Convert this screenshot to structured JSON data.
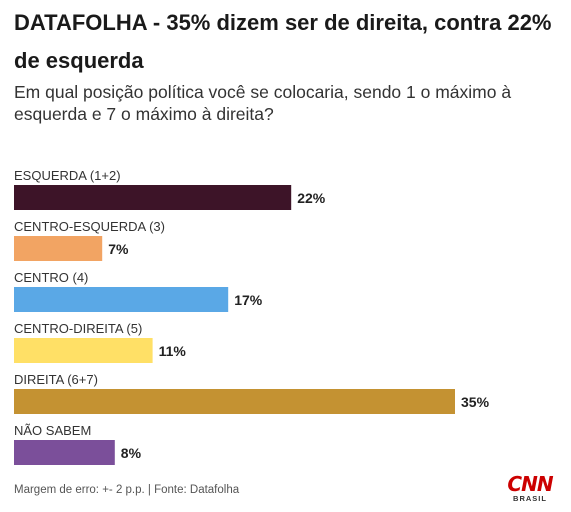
{
  "header": {
    "title": "DATAFOLHA - 35% dizem ser de direita, contra 22% de esquerda",
    "subtitle": "Em qual posição política você se colocaria, sendo 1 o máximo à esquerda e 7 o máximo à direita?"
  },
  "chart_data": {
    "type": "bar",
    "orientation": "horizontal",
    "categories": [
      "ESQUERDA (1+2)",
      "CENTRO-ESQUERDA (3)",
      "CENTRO (4)",
      "CENTRO-DIREITA (5)",
      "DIREITA (6+7)",
      "NÃO SABEM"
    ],
    "values": [
      22,
      7,
      17,
      11,
      35,
      8
    ],
    "data_labels": [
      "22%",
      "7%",
      "17%",
      "11%",
      "35%",
      "8%"
    ],
    "colors": [
      "#3d1428",
      "#f2a463",
      "#5aa8e6",
      "#ffe066",
      "#c49232",
      "#7b4f9a"
    ],
    "unit": "%",
    "xlim": [
      0,
      35
    ],
    "grid": false,
    "legend": "none"
  },
  "footer": {
    "source": "Margem de erro: +- 2 p.p. | Fonte: Datafolha"
  },
  "logo": {
    "main": "CNN",
    "sub": "BRASIL"
  }
}
